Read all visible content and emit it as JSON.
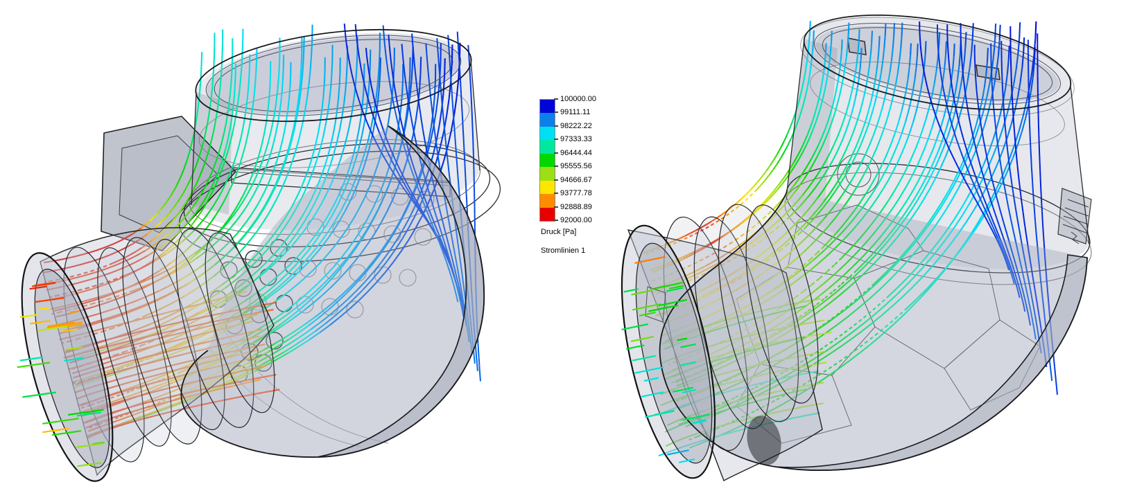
{
  "page": {
    "background_color": "#FFFFFF"
  },
  "legend": {
    "tick_values": [
      "100000.00",
      "99111.11",
      "98222.22",
      "97333.33",
      "96444.44",
      "95555.56",
      "94666.67",
      "93777.78",
      "92888.89",
      "92000.00"
    ],
    "band_colors_top_to_bottom": [
      "#0005D8",
      "#0D7FE8",
      "#00E0F5",
      "#00E8A0",
      "#00D800",
      "#9CDF12",
      "#FFE600",
      "#FF8C00",
      "#E80000"
    ],
    "unit_label": "Druck [Pa]",
    "series_label": "Stromlinien 1",
    "value_max": "100000.00",
    "value_min": "92000.00"
  }
}
